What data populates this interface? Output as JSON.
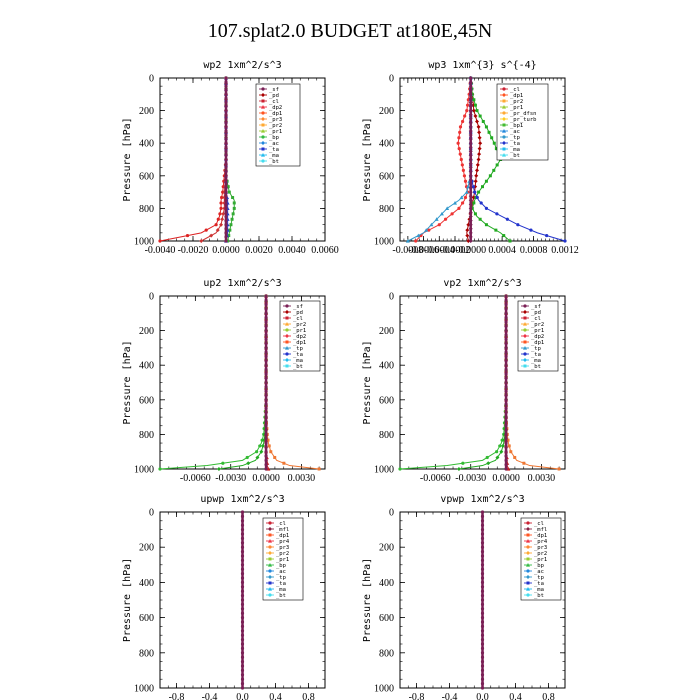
{
  "title": "107.splat2.0  BUDGET at180E,45N",
  "chart_data": [
    {
      "type": "line",
      "title": "wp2   1xm^2/s^3",
      "ylabel": "Pressure [hPa]",
      "xlim": [
        -0.004,
        0.006
      ],
      "ylim": [
        1000,
        0
      ],
      "xticks": [
        -0.004,
        -0.002,
        0.0,
        0.002,
        0.004,
        0.006
      ],
      "xtick_labels": [
        "-0.0040",
        "-0.0020",
        "0.0000",
        "0.0020",
        "0.0040",
        "0.0060"
      ],
      "yticks": [
        0,
        200,
        400,
        600,
        800,
        1000
      ],
      "ytick_labels": [
        "0",
        "200",
        "400",
        "600",
        "800",
        "1000"
      ],
      "legend": [
        "_sf",
        "_pd",
        "_cl",
        "_dp2",
        "_dp1",
        "_pr3",
        "_pr2",
        "_pr1",
        "_bp",
        "_ac",
        "_ta",
        "_ma",
        "_bt"
      ],
      "pressure": [
        0,
        100,
        200,
        300,
        400,
        500,
        600,
        700,
        750,
        800,
        850,
        900,
        950,
        1000
      ],
      "series": [
        {
          "name": "_dp1",
          "color": "#dd2222",
          "values": [
            0,
            0,
            0,
            0,
            0,
            0,
            -0.0001,
            -0.0002,
            -0.0003,
            -0.0003,
            -0.0004,
            -0.0006,
            -0.0015,
            -0.004
          ]
        },
        {
          "name": "_dp2",
          "color": "#cc3333",
          "values": [
            0,
            0,
            0,
            0,
            0,
            0,
            0,
            -0.0001,
            -0.0001,
            -0.0001,
            -0.0002,
            -0.0003,
            -0.0006,
            -0.0015
          ]
        },
        {
          "name": "_bp",
          "color": "#33aa33",
          "values": [
            0,
            0,
            0,
            0,
            0,
            0,
            0,
            0.0002,
            0.0005,
            0.0005,
            0.0004,
            0.0003,
            0.0002,
            0.0001
          ]
        },
        {
          "name": "_ta",
          "color": "#2244cc",
          "values": [
            0,
            0,
            0,
            0,
            0,
            0,
            0,
            0,
            0.0001,
            0.0001,
            0.0001,
            0.0001,
            0.0001,
            0
          ]
        },
        {
          "name": "_bt",
          "color": "#7a1f55",
          "values": [
            0,
            0,
            0,
            0,
            0,
            0,
            0,
            0,
            0,
            0,
            0,
            0,
            0,
            0
          ]
        }
      ]
    },
    {
      "type": "line",
      "title": "wp3   1xm^{3} s^{-4}",
      "ylabel": "Pressure [hPa]",
      "xlim": [
        -0.0009,
        0.0012
      ],
      "ylim": [
        1000,
        0
      ],
      "xticks": [
        -0.0008,
        -0.0006,
        -0.0004,
        -0.0002,
        0.0,
        0.0004,
        0.0008,
        0.0012
      ],
      "xtick_labels": [
        "-0.0008",
        "-0.0006",
        "-0.0004",
        "-0.0002",
        "-0.0000",
        "0.0004",
        "0.0008",
        "0.0012"
      ],
      "yticks": [
        0,
        200,
        400,
        600,
        800,
        1000
      ],
      "ytick_labels": [
        "0",
        "200",
        "400",
        "600",
        "800",
        "1000"
      ],
      "legend": [
        "_cl",
        "_dp1",
        "_pr2",
        "_pr1",
        "_pr_dfsn",
        "_pr_turb",
        "_bp1",
        "_ac",
        "_tp",
        "_ta",
        "_ma",
        "_bt"
      ],
      "pressure": [
        0,
        100,
        200,
        300,
        400,
        500,
        600,
        700,
        750,
        800,
        850,
        900,
        950,
        1000
      ],
      "series": [
        {
          "name": "_pr2",
          "color": "#ee3333",
          "values": [
            0,
            -2e-05,
            -5e-05,
            -0.00013,
            -0.00016,
            -0.00012,
            -8e-05,
            -4e-05,
            -8e-05,
            -0.00015,
            -0.00028,
            -0.0004,
            -0.0006,
            -0.0007
          ]
        },
        {
          "name": "_pr1",
          "color": "#aa0000",
          "values": [
            0,
            2e-05,
            4e-05,
            0.0001,
            0.00012,
            0.0001,
            7e-05,
            5e-05,
            3e-05,
            1e-05,
            -1e-05,
            -3e-05,
            -5e-05,
            -3e-05
          ]
        },
        {
          "name": "_bp1",
          "color": "#22aa22",
          "values": [
            0,
            2e-05,
            8e-05,
            0.0002,
            0.0003,
            0.00038,
            0.00025,
            0.0001,
            5e-05,
            2e-05,
            8e-05,
            0.0002,
            0.00038,
            0.0005
          ]
        },
        {
          "name": "_tp",
          "color": "#3399cc",
          "values": [
            0,
            0,
            0,
            0,
            0,
            0,
            0,
            -5e-05,
            -0.00015,
            -0.0003,
            -0.0004,
            -0.0005,
            -0.0006,
            -0.0008
          ]
        },
        {
          "name": "_ta",
          "color": "#2233cc",
          "values": [
            0,
            0,
            0,
            0,
            0,
            0,
            0,
            5e-05,
            0.0001,
            0.0002,
            0.0004,
            0.0006,
            0.00085,
            0.0012
          ]
        },
        {
          "name": "_bt",
          "color": "#7a1f55",
          "values": [
            0,
            0,
            0,
            0,
            0,
            0,
            0,
            0,
            0,
            0,
            0,
            0,
            0,
            0
          ]
        }
      ]
    },
    {
      "type": "line",
      "title": "up2   1xm^2/s^3",
      "ylabel": "Pressure [hPa]",
      "xlim": [
        -0.009,
        0.005
      ],
      "ylim": [
        1000,
        0
      ],
      "xticks": [
        -0.006,
        -0.003,
        0.0,
        0.003
      ],
      "xtick_labels": [
        "-0.0060",
        "-0.0030",
        "0.0000",
        "0.0030"
      ],
      "yticks": [
        0,
        200,
        400,
        600,
        800,
        1000
      ],
      "ytick_labels": [
        "0",
        "200",
        "400",
        "600",
        "800",
        "1000"
      ],
      "legend": [
        "_sf",
        "_pd",
        "_cl",
        "_pr2",
        "_pr1",
        "_dp2",
        "_dp1",
        "_tp",
        "_ta",
        "_ma",
        "_bt"
      ],
      "pressure": [
        0,
        200,
        400,
        600,
        700,
        800,
        850,
        900,
        950,
        980,
        1000
      ],
      "series": [
        {
          "name": "_dp1",
          "color": "#33bb33",
          "values": [
            0,
            0,
            0,
            0,
            -0.0001,
            -0.0002,
            -0.0004,
            -0.0008,
            -0.002,
            -0.005,
            -0.009
          ]
        },
        {
          "name": "_dp2",
          "color": "#22aa22",
          "values": [
            0,
            0,
            0,
            0,
            0,
            -0.0001,
            -0.0002,
            -0.0004,
            -0.0009,
            -0.002,
            -0.004
          ]
        },
        {
          "name": "_pr1",
          "color": "#ee7733",
          "values": [
            0,
            0,
            0,
            0,
            0,
            0.0001,
            0.0002,
            0.0004,
            0.0009,
            0.002,
            0.0045
          ]
        },
        {
          "name": "_pd",
          "color": "#cc2222",
          "values": [
            0,
            0,
            0,
            0,
            0,
            0,
            0,
            0,
            0.0001,
            0.0001,
            0.0002
          ]
        },
        {
          "name": "_bt",
          "color": "#7a1f55",
          "values": [
            0,
            0,
            0,
            0,
            0,
            0,
            0,
            0,
            0,
            0,
            0
          ]
        }
      ]
    },
    {
      "type": "line",
      "title": "vp2   1xm^2/s^3",
      "ylabel": "Pressure [hPa]",
      "xlim": [
        -0.009,
        0.005
      ],
      "ylim": [
        1000,
        0
      ],
      "xticks": [
        -0.006,
        -0.003,
        0.0,
        0.003
      ],
      "xtick_labels": [
        "-0.0060",
        "-0.0030",
        "0.0000",
        "0.0030"
      ],
      "yticks": [
        0,
        200,
        400,
        600,
        800,
        1000
      ],
      "ytick_labels": [
        "0",
        "200",
        "400",
        "600",
        "800",
        "1000"
      ],
      "legend": [
        "_sf",
        "_pd",
        "_cl",
        "_pr2",
        "_pr1",
        "_dp2",
        "_dp1",
        "_tp",
        "_ta",
        "_ma",
        "_bt"
      ],
      "pressure": [
        0,
        200,
        400,
        600,
        700,
        800,
        850,
        900,
        950,
        980,
        1000
      ],
      "series": [
        {
          "name": "_dp1",
          "color": "#33bb33",
          "values": [
            0,
            0,
            0,
            0,
            -0.0001,
            -0.0002,
            -0.0004,
            -0.0008,
            -0.002,
            -0.005,
            -0.009
          ]
        },
        {
          "name": "_dp2",
          "color": "#22aa22",
          "values": [
            0,
            0,
            0,
            0,
            0,
            -0.0001,
            -0.0002,
            -0.0004,
            -0.0009,
            -0.002,
            -0.004
          ]
        },
        {
          "name": "_pr1",
          "color": "#ee7733",
          "values": [
            0,
            0,
            0,
            0,
            0,
            0.0001,
            0.0002,
            0.0004,
            0.0009,
            0.002,
            0.0045
          ]
        },
        {
          "name": "_pd",
          "color": "#cc2222",
          "values": [
            0,
            0,
            0,
            0,
            0,
            0,
            0,
            0,
            0.0001,
            0.0001,
            0.0002
          ]
        },
        {
          "name": "_bt",
          "color": "#7a1f55",
          "values": [
            0,
            0,
            0,
            0,
            0,
            0,
            0,
            0,
            0,
            0,
            0
          ]
        }
      ]
    },
    {
      "type": "line",
      "title": "upwp   1xm^2/s^3",
      "ylabel": "Pressure [hPa]",
      "xlim": [
        -1.0,
        1.0
      ],
      "ylim": [
        1000,
        0
      ],
      "xticks": [
        -0.8,
        -0.4,
        0.0,
        0.4,
        0.8
      ],
      "xtick_labels": [
        "-0.8",
        "-0.4",
        "0.0",
        "0.4",
        "0.8"
      ],
      "yticks": [
        0,
        200,
        400,
        600,
        800,
        1000
      ],
      "ytick_labels": [
        "0",
        "200",
        "400",
        "600",
        "800",
        "1000"
      ],
      "legend": [
        "_cl",
        "_mfl",
        "_dp1",
        "_pr4",
        "_pr3",
        "_pr2",
        "_pr1",
        "_bp",
        "_ac",
        "_tp",
        "_ta",
        "_ma",
        "_bt"
      ],
      "pressure": [
        0,
        200,
        400,
        600,
        800,
        1000
      ],
      "series": [
        {
          "name": "_bt",
          "color": "#7a1f55",
          "values": [
            0,
            0,
            0,
            0,
            0,
            0
          ]
        }
      ]
    },
    {
      "type": "line",
      "title": "vpwp   1xm^2/s^3",
      "ylabel": "Pressure [hPa]",
      "xlim": [
        -1.0,
        1.0
      ],
      "ylim": [
        1000,
        0
      ],
      "xticks": [
        -0.8,
        -0.4,
        0.0,
        0.4,
        0.8
      ],
      "xtick_labels": [
        "-0.8",
        "-0.4",
        "0.0",
        "0.4",
        "0.8"
      ],
      "yticks": [
        0,
        200,
        400,
        600,
        800,
        1000
      ],
      "ytick_labels": [
        "0",
        "200",
        "400",
        "600",
        "800",
        "1000"
      ],
      "legend": [
        "_cl",
        "_mfl",
        "_dp1",
        "_pr4",
        "_pr3",
        "_pr2",
        "_pr1",
        "_bp",
        "_ac",
        "_tp",
        "_ta",
        "_ma",
        "_bt"
      ],
      "pressure": [
        0,
        200,
        400,
        600,
        800,
        1000
      ],
      "series": [
        {
          "name": "_bt",
          "color": "#7a1f55",
          "values": [
            0,
            0,
            0,
            0,
            0,
            0
          ]
        }
      ]
    }
  ],
  "legend_colors": {
    "_sf": "#7a1f55",
    "_pd": "#aa0000",
    "_cl": "#cc2233",
    "_dp2": "#ee3344",
    "_dp1": "#ff5522",
    "_pr3": "#ff8833",
    "_pr2": "#ffaa33",
    "_pr1": "#99cc33",
    "_bp": "#33bb44",
    "_ac": "#2288dd",
    "_ta": "#2233cc",
    "_ma": "#22bbee",
    "_bt": "#44ddee",
    "_pr_dfsn": "#ffaa33",
    "_pr_turb": "#ffcc22",
    "_bp1": "#44bb33",
    "_tp": "#3399cc",
    "_mfl": "#882244",
    "_pr4": "#ee3344"
  }
}
